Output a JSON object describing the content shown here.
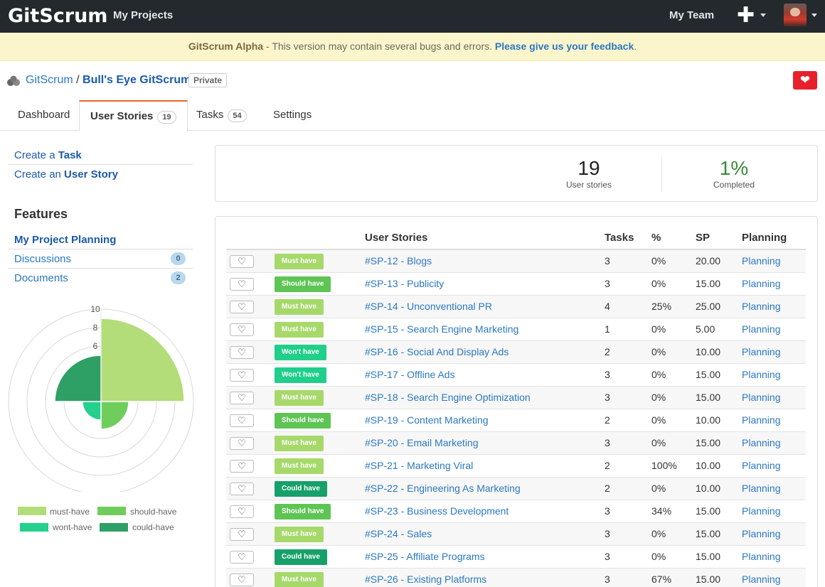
{
  "topnav": {
    "logo": "GitScrum",
    "my_projects": "My Projects",
    "my_team": "My Team",
    "plus_icon": "plus-icon",
    "avatar_icon": "avatar"
  },
  "banner": {
    "brand": "GitScrum Alpha",
    "message": " - This version may contain several bugs and errors. ",
    "feedback_link": "Please give us your feedback",
    "end": "."
  },
  "breadcrumb": {
    "org": "GitScrum",
    "separator": " / ",
    "project": "Bull's Eye GitScrum",
    "visibility": "Private"
  },
  "tabs": [
    {
      "label": "Dashboard",
      "count": null
    },
    {
      "label": "User Stories",
      "count": "19"
    },
    {
      "label": "Tasks",
      "count": "54"
    },
    {
      "label": "Settings",
      "count": null
    }
  ],
  "sidebar": {
    "create_task_prefix": "Create a ",
    "create_task_bold": "Task",
    "create_story_prefix": "Create an ",
    "create_story_bold": "User Story",
    "features_title": "Features",
    "items": [
      {
        "label": "My Project Planning",
        "count": null
      },
      {
        "label": "Discussions",
        "count": "0"
      },
      {
        "label": "Documents",
        "count": "2"
      }
    ]
  },
  "chart_data": {
    "type": "radar",
    "tick_labels": [
      "10",
      "8",
      "6"
    ],
    "rmax": 10,
    "series": [
      {
        "name": "must-have",
        "value": 9,
        "color": "#b3dd78"
      },
      {
        "name": "should-have",
        "value": 3,
        "color": "#6fce5b"
      },
      {
        "name": "wont-have",
        "value": 2,
        "color": "#24d08e"
      },
      {
        "name": "could-have",
        "value": 5,
        "color": "#2ea066"
      }
    ],
    "legend_placement": "bottom"
  },
  "stats": {
    "stories_value": "19",
    "stories_label": "User stories",
    "completed_value": "1%",
    "completed_label": "Completed",
    "completed_color": "#3a8a3a"
  },
  "table": {
    "headers": {
      "stories": "User Stories",
      "tasks": "Tasks",
      "pct": "%",
      "sp": "SP",
      "planning": "Planning"
    },
    "like_icon": "heart-outline-icon",
    "rows": [
      {
        "prio": "Must have",
        "cls": "p-must",
        "story": "#SP-12 - Blogs",
        "tasks": "3",
        "pct": "0%",
        "sp": "20.00",
        "planning": "Planning"
      },
      {
        "prio": "Should have",
        "cls": "p-should",
        "story": "#SP-13 - Publicity",
        "tasks": "3",
        "pct": "0%",
        "sp": "15.00",
        "planning": "Planning"
      },
      {
        "prio": "Must have",
        "cls": "p-must",
        "story": "#SP-14 - Unconventional PR",
        "tasks": "4",
        "pct": "25%",
        "sp": "25.00",
        "planning": "Planning"
      },
      {
        "prio": "Must have",
        "cls": "p-must",
        "story": "#SP-15 - Search Engine Marketing",
        "tasks": "1",
        "pct": "0%",
        "sp": "5.00",
        "planning": "Planning"
      },
      {
        "prio": "Won't have",
        "cls": "p-wont",
        "story": "#SP-16 - Social And Display Ads",
        "tasks": "2",
        "pct": "0%",
        "sp": "10.00",
        "planning": "Planning"
      },
      {
        "prio": "Won't have",
        "cls": "p-wont",
        "story": "#SP-17 - Offline Ads",
        "tasks": "3",
        "pct": "0%",
        "sp": "15.00",
        "planning": "Planning"
      },
      {
        "prio": "Must have",
        "cls": "p-must",
        "story": "#SP-18 - Search Engine Optimization",
        "tasks": "3",
        "pct": "0%",
        "sp": "15.00",
        "planning": "Planning"
      },
      {
        "prio": "Should have",
        "cls": "p-should",
        "story": "#SP-19 - Content Marketing",
        "tasks": "2",
        "pct": "0%",
        "sp": "10.00",
        "planning": "Planning"
      },
      {
        "prio": "Must have",
        "cls": "p-must",
        "story": "#SP-20 - Email Marketing",
        "tasks": "3",
        "pct": "0%",
        "sp": "15.00",
        "planning": "Planning"
      },
      {
        "prio": "Must have",
        "cls": "p-must",
        "story": "#SP-21 - Marketing Viral",
        "tasks": "2",
        "pct": "100%",
        "sp": "10.00",
        "planning": "Planning"
      },
      {
        "prio": "Could have",
        "cls": "p-could",
        "story": "#SP-22 - Engineering As Marketing",
        "tasks": "2",
        "pct": "0%",
        "sp": "10.00",
        "planning": "Planning"
      },
      {
        "prio": "Should have",
        "cls": "p-should",
        "story": "#SP-23 - Business Development",
        "tasks": "3",
        "pct": "34%",
        "sp": "15.00",
        "planning": "Planning"
      },
      {
        "prio": "Must have",
        "cls": "p-must",
        "story": "#SP-24 - Sales",
        "tasks": "3",
        "pct": "0%",
        "sp": "15.00",
        "planning": "Planning"
      },
      {
        "prio": "Could have",
        "cls": "p-could",
        "story": "#SP-25 - Affiliate Programs",
        "tasks": "3",
        "pct": "0%",
        "sp": "15.00",
        "planning": "Planning"
      },
      {
        "prio": "Must have",
        "cls": "p-must",
        "story": "#SP-26 - Existing Platforms",
        "tasks": "3",
        "pct": "67%",
        "sp": "15.00",
        "planning": "Planning"
      }
    ]
  }
}
